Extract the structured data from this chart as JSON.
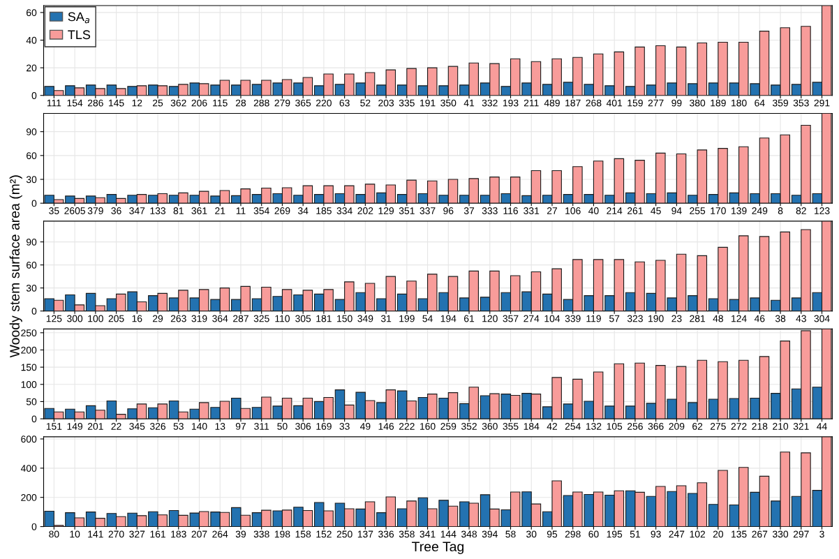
{
  "chart_data": [
    {
      "type": "bar",
      "legend": "top left",
      "grid": true,
      "ylim": [
        0,
        65
      ],
      "yticks": [
        0,
        20,
        40,
        60
      ],
      "categories": [
        "111",
        "154",
        "286",
        "145",
        "12",
        "25",
        "362",
        "206",
        "115",
        "28",
        "288",
        "279",
        "365",
        "220",
        "63",
        "52",
        "203",
        "335",
        "191",
        "350",
        "41",
        "332",
        "193",
        "211",
        "489",
        "187",
        "268",
        "401",
        "159",
        "277",
        "99",
        "380",
        "189",
        "180",
        "64",
        "359",
        "353",
        "291"
      ],
      "series": [
        {
          "name": "SA$_{a}$",
          "color": "#2372b0",
          "values": [
            6.5,
            7,
            7.5,
            7.5,
            6.5,
            7.5,
            6.5,
            9,
            7.5,
            7.5,
            8,
            9,
            9,
            7,
            8,
            9,
            7.5,
            7.5,
            7,
            7,
            7.5,
            9,
            6.5,
            9,
            8,
            9.5,
            8,
            7,
            6.5,
            7.5,
            9,
            8.5,
            9,
            9,
            8.5,
            7.5,
            8,
            9.5
          ]
        },
        {
          "name": "TLS",
          "color": "#f89c9a",
          "values": [
            3.5,
            5.5,
            5,
            5,
            7,
            7,
            8,
            8.5,
            11,
            11,
            11,
            11.5,
            13,
            15.5,
            15.5,
            16.5,
            18.5,
            19.5,
            20,
            21,
            23.5,
            23,
            26.5,
            24.5,
            26.5,
            27.5,
            30,
            31.5,
            35,
            36,
            35,
            38,
            38.5,
            38.5,
            46.5,
            49,
            50,
            65
          ]
        }
      ]
    },
    {
      "type": "bar",
      "grid": true,
      "ylim": [
        0,
        113
      ],
      "yticks": [
        0,
        30,
        60,
        90
      ],
      "categories": [
        "35",
        "2605",
        "379",
        "36",
        "347",
        "133",
        "81",
        "361",
        "21",
        "11",
        "354",
        "269",
        "34",
        "185",
        "334",
        "202",
        "129",
        "351",
        "337",
        "96",
        "37",
        "333",
        "116",
        "331",
        "27",
        "106",
        "40",
        "214",
        "261",
        "45",
        "94",
        "255",
        "170",
        "139",
        "249",
        "8",
        "82",
        "123"
      ],
      "series": [
        {
          "color": "#2372b0",
          "values": [
            10,
            9,
            9,
            11,
            10,
            10,
            10,
            10,
            9,
            9.5,
            11,
            12,
            10,
            11,
            12,
            11,
            13,
            11,
            12,
            10,
            10,
            10,
            12,
            9.5,
            10,
            11,
            11,
            10,
            13,
            12,
            13,
            10,
            11,
            13,
            12,
            12,
            10,
            12
          ]
        },
        {
          "color": "#f89c9a",
          "values": [
            4.5,
            6,
            7,
            6,
            11,
            12,
            13,
            15,
            16,
            18,
            19,
            19.5,
            22,
            22,
            22,
            24,
            23,
            29,
            28,
            30,
            31,
            33,
            33,
            41,
            41,
            46,
            53,
            56,
            54,
            63,
            62,
            67,
            69,
            71,
            82,
            86,
            98,
            113
          ]
        }
      ]
    },
    {
      "type": "bar",
      "grid": true,
      "ylim": [
        0,
        117
      ],
      "yticks": [
        0,
        30,
        60,
        90
      ],
      "ylabel": "Woody stem surface area (m²)",
      "categories": [
        "125",
        "300",
        "100",
        "205",
        "16",
        "29",
        "263",
        "319",
        "364",
        "287",
        "325",
        "110",
        "305",
        "181",
        "150",
        "349",
        "31",
        "199",
        "54",
        "194",
        "61",
        "120",
        "357",
        "274",
        "104",
        "339",
        "119",
        "57",
        "323",
        "190",
        "23",
        "281",
        "48",
        "124",
        "46",
        "38",
        "43",
        "304"
      ],
      "series": [
        {
          "color": "#2372b0",
          "values": [
            16,
            21,
            23,
            16,
            25,
            20,
            17,
            17,
            15,
            15,
            16,
            19,
            21,
            22,
            15,
            24,
            16,
            22,
            16,
            24,
            17,
            18,
            24,
            25,
            22,
            15,
            20,
            20,
            24,
            23,
            17,
            20,
            16,
            15,
            17,
            14,
            17,
            24
          ]
        },
        {
          "color": "#f89c9a",
          "values": [
            14,
            8,
            7,
            22,
            12,
            23,
            27,
            28,
            30,
            32,
            31,
            28,
            27,
            28,
            38,
            36,
            45,
            39,
            48,
            45,
            52,
            52,
            46,
            51,
            55,
            67,
            67,
            67,
            64,
            66,
            74,
            72,
            83,
            98,
            97,
            103,
            106,
            117
          ]
        }
      ]
    },
    {
      "type": "bar",
      "grid": true,
      "ylim": [
        0,
        261
      ],
      "yticks": [
        0,
        50,
        100,
        150,
        200,
        250
      ],
      "categories": [
        "151",
        "149",
        "201",
        "22",
        "345",
        "326",
        "53",
        "140",
        "13",
        "97",
        "311",
        "50",
        "306",
        "169",
        "33",
        "49",
        "146",
        "222",
        "160",
        "259",
        "352",
        "360",
        "355",
        "184",
        "42",
        "254",
        "132",
        "105",
        "256",
        "366",
        "209",
        "62",
        "275",
        "272",
        "218",
        "210",
        "321",
        "44"
      ],
      "series": [
        {
          "color": "#2372b0",
          "values": [
            30,
            28,
            38,
            52,
            29,
            32,
            52,
            28,
            33,
            60,
            33,
            37,
            38,
            50,
            84,
            77,
            47,
            81,
            62,
            60,
            44,
            67,
            72,
            74,
            35,
            43,
            51,
            37,
            37,
            45,
            57,
            47,
            57,
            59,
            60,
            74,
            87,
            92
          ]
        },
        {
          "color": "#f89c9a",
          "values": [
            20,
            20,
            25,
            13,
            43,
            43,
            20,
            47,
            51,
            30,
            63,
            60,
            60,
            62,
            40,
            53,
            84,
            52,
            72,
            76,
            92,
            73,
            68,
            72,
            120,
            115,
            136,
            160,
            162,
            155,
            152,
            170,
            166,
            170,
            181,
            226,
            256,
            261
          ]
        }
      ]
    },
    {
      "type": "bar",
      "grid": true,
      "ylim": [
        0,
        615
      ],
      "yticks": [
        0,
        200,
        400,
        600
      ],
      "xlabel": "Tree Tag",
      "categories": [
        "80",
        "10",
        "141",
        "270",
        "327",
        "161",
        "183",
        "207",
        "264",
        "39",
        "338",
        "198",
        "158",
        "152",
        "250",
        "137",
        "336",
        "358",
        "341",
        "144",
        "348",
        "394",
        "58",
        "30",
        "95",
        "298",
        "60",
        "195",
        "51",
        "93",
        "247",
        "102",
        "20",
        "135",
        "267",
        "330",
        "297",
        "3"
      ],
      "series": [
        {
          "color": "#2372b0",
          "values": [
            105,
            95,
            100,
            90,
            92,
            102,
            110,
            93,
            100,
            130,
            95,
            108,
            133,
            165,
            160,
            120,
            95,
            122,
            197,
            180,
            170,
            218,
            115,
            238,
            102,
            213,
            220,
            215,
            245,
            207,
            240,
            227,
            152,
            148,
            235,
            175,
            207,
            248
          ]
        },
        {
          "color": "#f89c9a",
          "values": [
            8,
            60,
            57,
            68,
            75,
            80,
            77,
            103,
            97,
            78,
            112,
            113,
            110,
            108,
            122,
            170,
            203,
            175,
            122,
            140,
            160,
            120,
            237,
            155,
            313,
            237,
            237,
            245,
            235,
            275,
            280,
            300,
            385,
            405,
            345,
            510,
            505,
            615
          ]
        }
      ]
    }
  ]
}
